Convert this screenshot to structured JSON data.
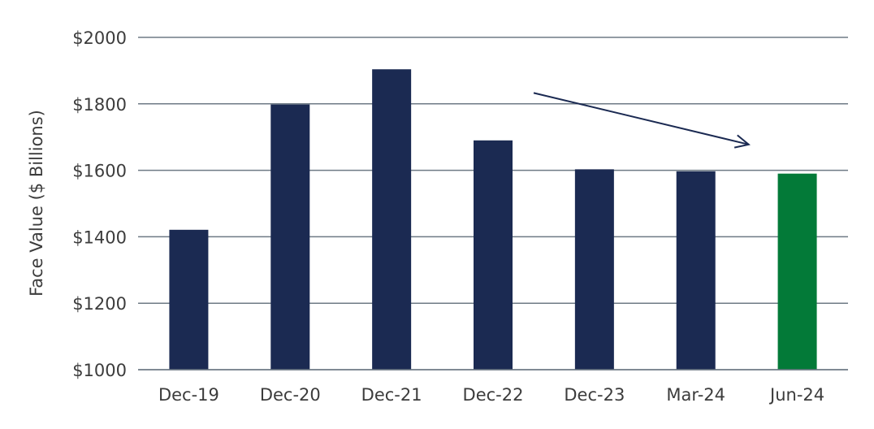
{
  "chart_data": {
    "type": "bar",
    "title": "",
    "xlabel": "",
    "ylabel": "Face Value ($ Billions)",
    "categories": [
      "Dec-19",
      "Dec-20",
      "Dec-21",
      "Dec-22",
      "Dec-23",
      "Mar-24",
      "Jun-24"
    ],
    "values": [
      1421,
      1798,
      1904,
      1690,
      1603,
      1597,
      1590
    ],
    "ylim": [
      1000,
      2000
    ],
    "yticks": [
      1000,
      1200,
      1400,
      1600,
      1800,
      2000
    ],
    "ytick_labels": [
      "$1000",
      "$1200",
      "$1400",
      "$1600",
      "$1800",
      "$2000"
    ],
    "grid": true,
    "legend": "none",
    "bar_colors": [
      "#1b2a52",
      "#1b2a52",
      "#1b2a52",
      "#1b2a52",
      "#1b2a52",
      "#1b2a52",
      "#037a38"
    ],
    "annotations": [
      {
        "type": "arrow",
        "from": {
          "x": "Dec-22",
          "y": 1850
        },
        "to": {
          "x": "Mar-24",
          "y": 1690
        },
        "color": "#1b2a52"
      }
    ]
  },
  "colors": {
    "bar": "#1b2a52",
    "highlight_bar": "#037a38",
    "grid": "#6e7a85",
    "text": "#3c3c3c"
  }
}
